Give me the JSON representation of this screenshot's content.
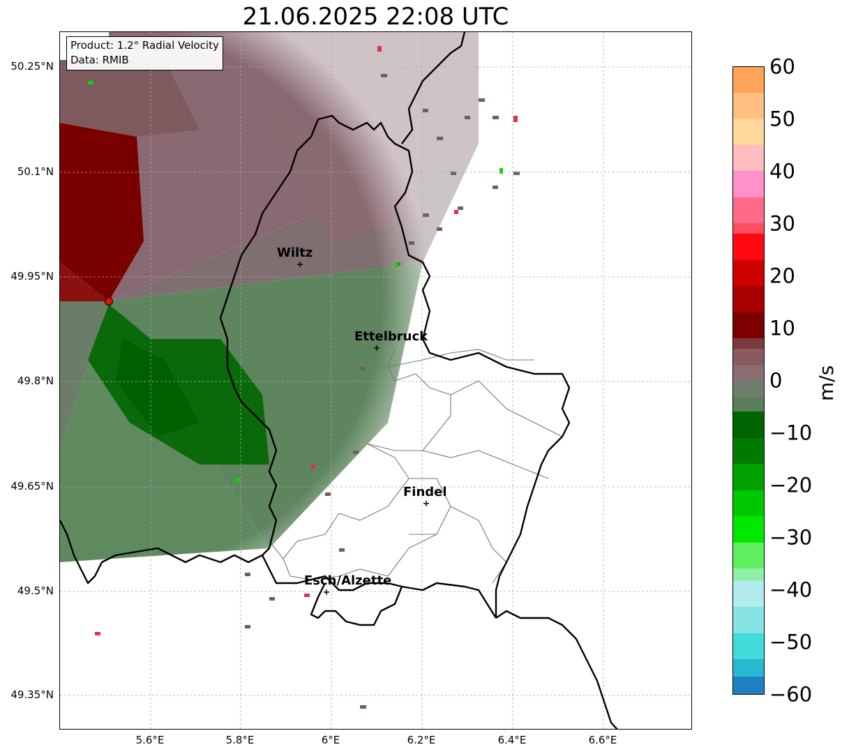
{
  "title": "21.06.2025 22:08 UTC",
  "info": {
    "product_line": "Product: 1.2° Radial Velocity",
    "data_line": "Data: RMIB"
  },
  "axes": {
    "lat_labels": [
      "50.25°N",
      "50.1°N",
      "49.95°N",
      "49.8°N",
      "49.65°N",
      "49.5°N",
      "49.35°N"
    ],
    "lon_labels": [
      "5.6°E",
      "5.8°E",
      "6°E",
      "6.2°E",
      "6.4°E",
      "6.6°E"
    ]
  },
  "cities": [
    {
      "name": "Wiltz"
    },
    {
      "name": "Ettelbruck"
    },
    {
      "name": "Findel"
    },
    {
      "name": "Esch/Alzette"
    }
  ],
  "colorbar": {
    "unit": "m/s",
    "ticks": [
      "60",
      "50",
      "40",
      "30",
      "20",
      "10",
      "0",
      "−10",
      "−20",
      "−30",
      "−40",
      "−50",
      "−60"
    ],
    "range": [
      -60,
      60
    ]
  },
  "colors": {
    "inbound_strong": "#006400",
    "inbound_weak": "#5e8a5e",
    "outbound_weak": "#8a6a70",
    "outbound_strong": "#7a0000",
    "radar_site": "#e01010"
  }
}
